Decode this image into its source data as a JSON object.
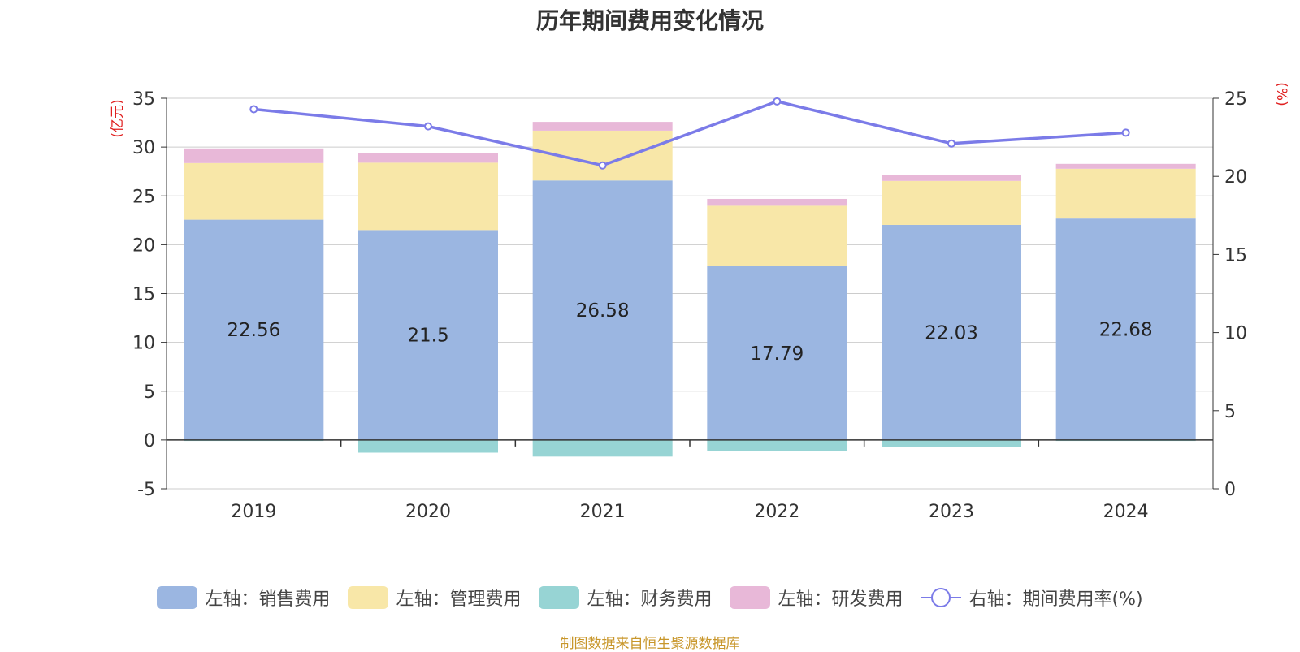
{
  "chart_data": {
    "type": "bar",
    "title": "历年期间费用变化情况",
    "categories": [
      "2019",
      "2020",
      "2021",
      "2022",
      "2023",
      "2024"
    ],
    "stacked": true,
    "left_axis": {
      "unit_label": "(亿元)",
      "ylim": [
        -5,
        35
      ],
      "ticks": [
        -5,
        0,
        5,
        10,
        15,
        20,
        25,
        30,
        35
      ]
    },
    "right_axis": {
      "unit_label": "(%)",
      "ylim": [
        0,
        25
      ],
      "ticks": [
        0,
        5,
        10,
        15,
        20,
        25
      ]
    },
    "series": [
      {
        "name": "左轴：销售费用",
        "axis": "left",
        "color": "#9bb6e1",
        "values": [
          22.56,
          21.5,
          26.58,
          17.79,
          22.03,
          22.68
        ],
        "show_labels": true
      },
      {
        "name": "左轴：管理费用",
        "axis": "left",
        "color": "#f8e7a8",
        "values": [
          5.8,
          6.9,
          5.1,
          6.2,
          4.5,
          5.1
        ]
      },
      {
        "name": "左轴：财务费用",
        "axis": "left",
        "color": "#97d4d4",
        "values": [
          -0.1,
          -1.3,
          -1.7,
          -1.1,
          -0.7,
          -0.1
        ]
      },
      {
        "name": "左轴：研发费用",
        "axis": "left",
        "color": "#e8b8d8",
        "values": [
          1.5,
          1.0,
          0.9,
          0.7,
          0.6,
          0.5
        ]
      },
      {
        "name": "右轴：期间费用率(%)",
        "axis": "right",
        "type": "line",
        "color": "#7b7be8",
        "values": [
          24.3,
          23.2,
          20.7,
          24.8,
          22.1,
          22.8
        ]
      }
    ],
    "grid": true,
    "legend_position": "bottom"
  },
  "source_note": "制图数据来自恒生聚源数据库"
}
